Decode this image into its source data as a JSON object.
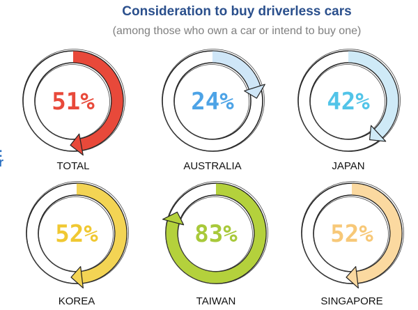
{
  "chart_data": {
    "type": "radial-progress",
    "title": "Consideration to buy driverless cars",
    "subtitle": "(among those who own a car or intend to buy one)",
    "unit": "%",
    "categories": [
      "TOTAL",
      "AUSTRALIA",
      "JAPAN",
      "KOREA",
      "TAIWAN",
      "SINGAPORE"
    ],
    "values": [
      51,
      24,
      42,
      52,
      83,
      52
    ],
    "labels": [
      "51%",
      "24%",
      "42%",
      "52%",
      "83%",
      "52%"
    ],
    "colors": [
      "#e8493a",
      "#4da3e6",
      "#52c4e8",
      "#f0c832",
      "#a8c93a",
      "#f7c878"
    ],
    "arc_colors": [
      "#e8493a",
      "#cfe6f7",
      "#cfeaf7",
      "#f3d454",
      "#b4d13c",
      "#fbd9a0"
    ],
    "ymin": 0,
    "ymax": 100
  },
  "edge_mark": "c\nr"
}
